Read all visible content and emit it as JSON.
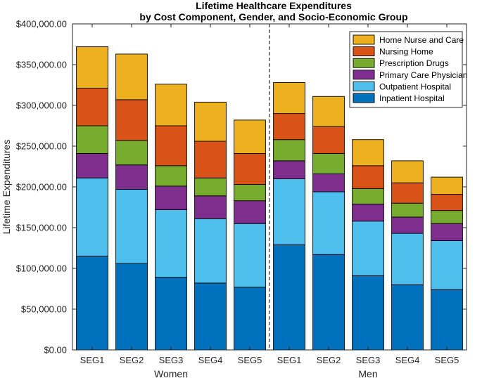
{
  "chart_data": {
    "type": "stacked-bar",
    "title": [
      "Lifetime Healthcare Expenditures",
      "by Cost Component, Gender, and Socio-Economic Group"
    ],
    "ylabel": "Lifetime Expenditures",
    "ylim": [
      0,
      400000
    ],
    "yticks": [
      0,
      50000,
      100000,
      150000,
      200000,
      250000,
      300000,
      350000,
      400000
    ],
    "ytick_labels": [
      "$0.00",
      "$50,000.00",
      "$100,000.00",
      "$150,000.00",
      "$200,000.00",
      "$250,000.00",
      "$300,000.00",
      "$350,000.00",
      "$400,000.00"
    ],
    "categories": [
      "SEG1",
      "SEG2",
      "SEG3",
      "SEG4",
      "SEG5",
      "SEG1",
      "SEG2",
      "SEG3",
      "SEG4",
      "SEG5"
    ],
    "groups": [
      {
        "label": "Women",
        "start": 0,
        "count": 5
      },
      {
        "label": "Men",
        "start": 5,
        "count": 5
      }
    ],
    "group_separator": "dashed line between Women and Men",
    "legend_position": "top-right",
    "series": [
      {
        "name": "Inpatient Hospital",
        "color": "#0072BD",
        "values": [
          115000,
          106000,
          89000,
          82000,
          77000,
          129000,
          117000,
          91000,
          80000,
          74000
        ]
      },
      {
        "name": "Outpatient Hospital",
        "color": "#4DBEEE",
        "values": [
          96000,
          91000,
          83000,
          79000,
          78000,
          81000,
          77000,
          67000,
          63000,
          60000
        ]
      },
      {
        "name": "Primary Care Physician",
        "color": "#7E2F8E",
        "values": [
          30000,
          30000,
          29000,
          28000,
          28000,
          22000,
          22000,
          21000,
          20000,
          21000
        ]
      },
      {
        "name": "Prescription Drugs",
        "color": "#77AC30",
        "values": [
          34000,
          30000,
          25000,
          22000,
          20000,
          26000,
          25000,
          19000,
          17000,
          16000
        ]
      },
      {
        "name": "Nursing Home",
        "color": "#D95319",
        "values": [
          46000,
          50000,
          49000,
          45000,
          38000,
          32000,
          33000,
          28000,
          25000,
          20000
        ]
      },
      {
        "name": "Home Nurse and Care",
        "color": "#EDB120",
        "values": [
          51000,
          56000,
          51000,
          48000,
          41000,
          38000,
          37000,
          32000,
          27000,
          21000
        ]
      }
    ]
  }
}
